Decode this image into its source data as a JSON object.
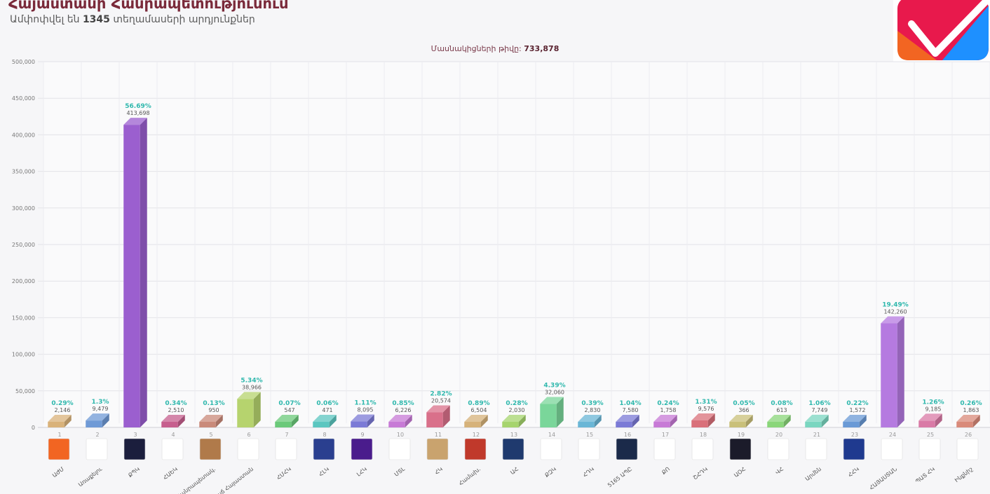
{
  "header": {
    "title": "Հայաստանի Հանրապետությունում",
    "subtitle_pre": "Ամփոփվել են",
    "subtitle_count": "1345",
    "subtitle_post": "տեղամասերի արդյունքներ",
    "voters_label": "Մասնակիցների թիվը:",
    "voters_value": "733,878"
  },
  "logo": {
    "icon": "checkmark-logo-icon",
    "colors": [
      "#e8194c",
      "#f26522",
      "#1e90ff",
      "#ffffff"
    ]
  },
  "chart_data": {
    "type": "bar",
    "ylim": [
      0,
      500000
    ],
    "yticks": [
      0,
      50000,
      100000,
      150000,
      200000,
      250000,
      300000,
      350000,
      400000,
      450000,
      500000
    ],
    "ytick_labels": [
      "0",
      "50,000",
      "100,000",
      "150,000",
      "200,000",
      "250,000",
      "300,000",
      "350,000",
      "400,000",
      "450,000",
      "500,000"
    ],
    "grid": true,
    "legend": "none",
    "bars": [
      {
        "num": "1",
        "abbr": "ԱԺՄ",
        "value": 2146,
        "value_label": "2,146",
        "pct": "0.29%",
        "color": "#d9b27a",
        "logo_color": "#f26522"
      },
      {
        "num": "2",
        "abbr": "Առաքելու",
        "value": 9479,
        "value_label": "9,479",
        "pct": "1.3%",
        "color": "#6f9ad6",
        "logo_color": "#ffffff"
      },
      {
        "num": "3",
        "abbr": "ՔՊԿ",
        "value": 413698,
        "value_label": "413,698",
        "pct": "56.69%",
        "color": "#9b5fcf",
        "logo_color": "#1b1e3d"
      },
      {
        "num": "4",
        "abbr": "ՀԱԵԿ",
        "value": 2510,
        "value_label": "2,510",
        "pct": "0.34%",
        "color": "#c65f8e",
        "logo_color": "#ffffff"
      },
      {
        "num": "5",
        "abbr": "Հանրապետակ.",
        "value": 950,
        "value_label": "950",
        "pct": "0.13%",
        "color": "#c98a7a",
        "logo_color": "#b07a4a"
      },
      {
        "num": "6",
        "abbr": "Բարգավաճ Հայաստան",
        "value": 38966,
        "value_label": "38,966",
        "pct": "5.34%",
        "color": "#b6d36e",
        "logo_color": "#ffffff"
      },
      {
        "num": "7",
        "abbr": "ՀՄՀԿ",
        "value": 547,
        "value_label": "547",
        "pct": "0.07%",
        "color": "#6bc97a",
        "logo_color": "#ffffff"
      },
      {
        "num": "8",
        "abbr": "ՀԼԿ",
        "value": 471,
        "value_label": "471",
        "pct": "0.06%",
        "color": "#5bc6c0",
        "logo_color": "#2a3f8f"
      },
      {
        "num": "9",
        "abbr": "ԼՀԿ",
        "value": 8095,
        "value_label": "8,095",
        "pct": "1.11%",
        "color": "#7b7ad6",
        "logo_color": "#4a1c8c"
      },
      {
        "num": "10",
        "abbr": "ՄՏԼ",
        "value": 6226,
        "value_label": "6,226",
        "pct": "0.85%",
        "color": "#c77ad6",
        "logo_color": "#ffffff"
      },
      {
        "num": "11",
        "abbr": "ՀԿ",
        "value": 20574,
        "value_label": "20,574",
        "pct": "2.82%",
        "color": "#d9708a",
        "logo_color": "#c9a36e"
      },
      {
        "num": "12",
        "abbr": "Համախ.",
        "value": 6504,
        "value_label": "6,504",
        "pct": "0.89%",
        "color": "#d6b27a",
        "logo_color": "#c0392b"
      },
      {
        "num": "13",
        "abbr": "ԱՀ",
        "value": 2030,
        "value_label": "2,030",
        "pct": "0.28%",
        "color": "#a6d46e",
        "logo_color": "#1f3a6e"
      },
      {
        "num": "14",
        "abbr": "ՔԶԿ",
        "value": 32060,
        "value_label": "32,060",
        "pct": "4.39%",
        "color": "#7ad69a",
        "logo_color": "#ffffff"
      },
      {
        "num": "15",
        "abbr": "ՀԴԿ",
        "value": 2830,
        "value_label": "2,830",
        "pct": "0.39%",
        "color": "#6ab6d6",
        "logo_color": "#ffffff"
      },
      {
        "num": "16",
        "abbr": "5165 ԱՊԸ",
        "value": 7580,
        "value_label": "7,580",
        "pct": "1.04%",
        "color": "#7b7ad6",
        "logo_color": "#1b2a4a"
      },
      {
        "num": "17",
        "abbr": "ՔՈ",
        "value": 1758,
        "value_label": "1,758",
        "pct": "0.24%",
        "color": "#c77ad6",
        "logo_color": "#ffffff"
      },
      {
        "num": "18",
        "abbr": "ՇՀԴԿ",
        "value": 9576,
        "value_label": "9,576",
        "pct": "1.31%",
        "color": "#d9707a",
        "logo_color": "#ffffff"
      },
      {
        "num": "19",
        "abbr": "ԱՕՀ",
        "value": 366,
        "value_label": "366",
        "pct": "0.05%",
        "color": "#c9c07a",
        "logo_color": "#1b1b2a"
      },
      {
        "num": "20",
        "abbr": "ՎՀ",
        "value": 613,
        "value_label": "613",
        "pct": "0.08%",
        "color": "#8ad67a",
        "logo_color": "#ffffff"
      },
      {
        "num": "21",
        "abbr": "Արմեն",
        "value": 7749,
        "value_label": "7,749",
        "pct": "1.06%",
        "color": "#7ad6c0",
        "logo_color": "#ffffff"
      },
      {
        "num": "23",
        "abbr": "ՀՀԿ",
        "value": 1572,
        "value_label": "1,572",
        "pct": "0.22%",
        "color": "#6a9ad6",
        "logo_color": "#1f3a8f"
      },
      {
        "num": "24",
        "abbr": "ՀԱՅԱՍՏԱՆ",
        "value": 142260,
        "value_label": "142,260",
        "pct": "19.49%",
        "color": "#b57ae0",
        "logo_color": "#ffffff"
      },
      {
        "num": "25",
        "abbr": "ՊԱՏ ՀԿ",
        "value": 9185,
        "value_label": "9,185",
        "pct": "1.26%",
        "color": "#d97aa6",
        "logo_color": "#ffffff"
      },
      {
        "num": "26",
        "abbr": "Ինքնիշ",
        "value": 1863,
        "value_label": "1,863",
        "pct": "0.26%",
        "color": "#d98a7a",
        "logo_color": "#ffffff"
      }
    ]
  }
}
